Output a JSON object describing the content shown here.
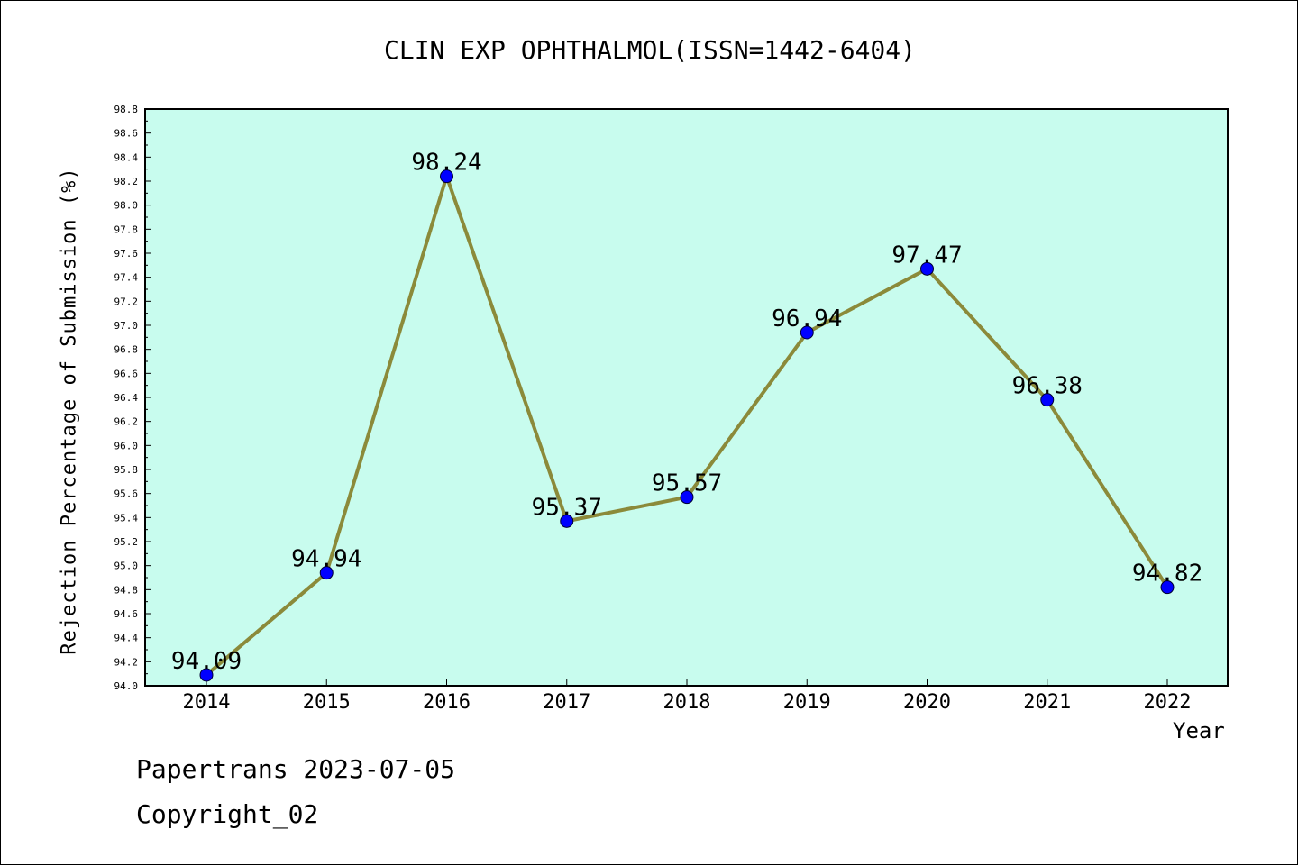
{
  "chart_data": {
    "type": "line",
    "title": "CLIN EXP OPHTHALMOL(ISSN=1442-6404)",
    "xlabel": "Year",
    "ylabel": "Rejection Percentage of Submission (%)",
    "categories": [
      "2014",
      "2015",
      "2016",
      "2017",
      "2018",
      "2019",
      "2020",
      "2021",
      "2022"
    ],
    "values": [
      94.09,
      94.94,
      98.24,
      95.37,
      95.57,
      96.94,
      97.47,
      96.38,
      94.82
    ],
    "value_labels": [
      "94.09",
      "94.94",
      "98.24",
      "95.37",
      "95.57",
      "96.94",
      "97.47",
      "96.38",
      "94.82"
    ],
    "ylim": [
      94.0,
      98.8
    ],
    "yticks": [
      "94.0",
      "94.2",
      "94.4",
      "94.6",
      "94.8",
      "95.0",
      "95.2",
      "95.4",
      "95.6",
      "95.8",
      "96.0",
      "96.2",
      "96.4",
      "96.6",
      "96.8",
      "97.0",
      "97.2",
      "97.4",
      "97.6",
      "97.8",
      "98.0",
      "98.2",
      "98.4",
      "98.6",
      "98.8"
    ],
    "grid": false,
    "legend": "none",
    "colors": {
      "plot_background": "#c8fcee",
      "line": "#8b8a3a",
      "marker": "#0000ff",
      "axis": "#000000"
    }
  },
  "footer": {
    "line1": "Papertrans 2023-07-05",
    "line2": "Copyright_02"
  }
}
